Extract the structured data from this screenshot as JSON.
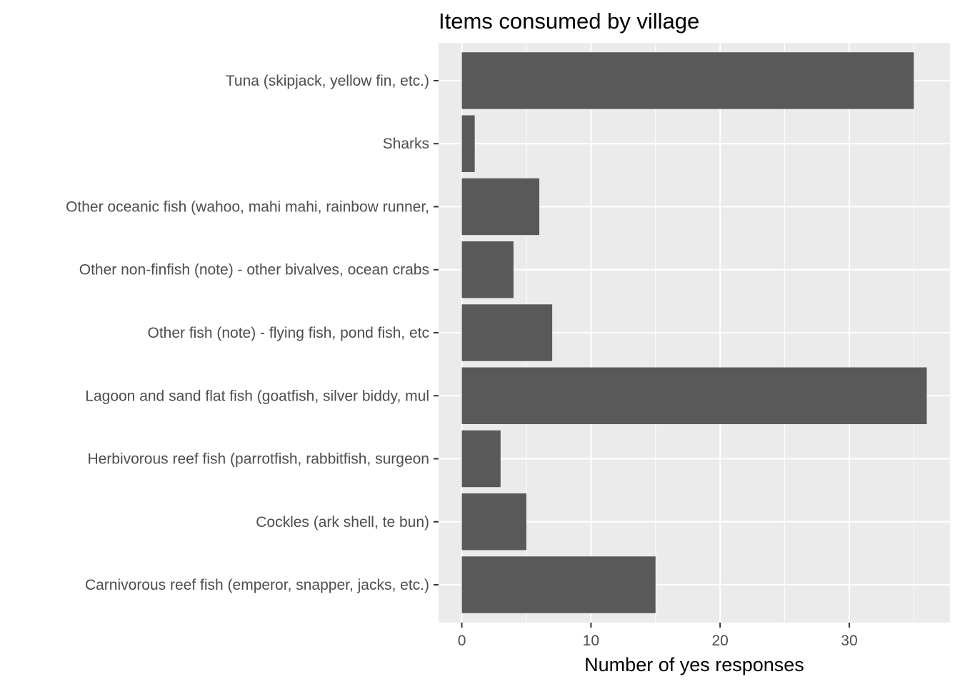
{
  "chart_data": {
    "type": "bar",
    "orientation": "horizontal",
    "title": "Items consumed by village",
    "xlabel": "Number of yes responses",
    "ylabel": "",
    "categories": [
      "Carnivorous reef fish (emperor, snapper, jacks, etc.)",
      "Cockles (ark shell, te bun)",
      "Herbivorous reef fish (parrotfish, rabbitfish, surgeon",
      "Lagoon and sand flat fish (goatfish, silver biddy, mul",
      "Other fish (note) - flying fish, pond fish, etc",
      "Other non-finfish (note) - other bivalves, ocean crabs",
      "Other oceanic fish (wahoo, mahi mahi, rainbow runner, ",
      "Sharks",
      "Tuna (skipjack, yellow fin, etc.)"
    ],
    "values": [
      15,
      5,
      3,
      36,
      7,
      4,
      6,
      1,
      35
    ],
    "x_ticks": [
      0,
      10,
      20,
      30
    ],
    "x_tick_labels": [
      "0",
      "10",
      "20",
      "30"
    ],
    "xlim": [
      -1.8,
      37.8
    ],
    "grid": true,
    "legend": "none",
    "colors": {
      "bar": "#595959",
      "panel": "#ebebeb",
      "grid": "#ffffff",
      "tick": "#333333",
      "tick_label": "#4d4d4d",
      "title": "#000000"
    }
  }
}
